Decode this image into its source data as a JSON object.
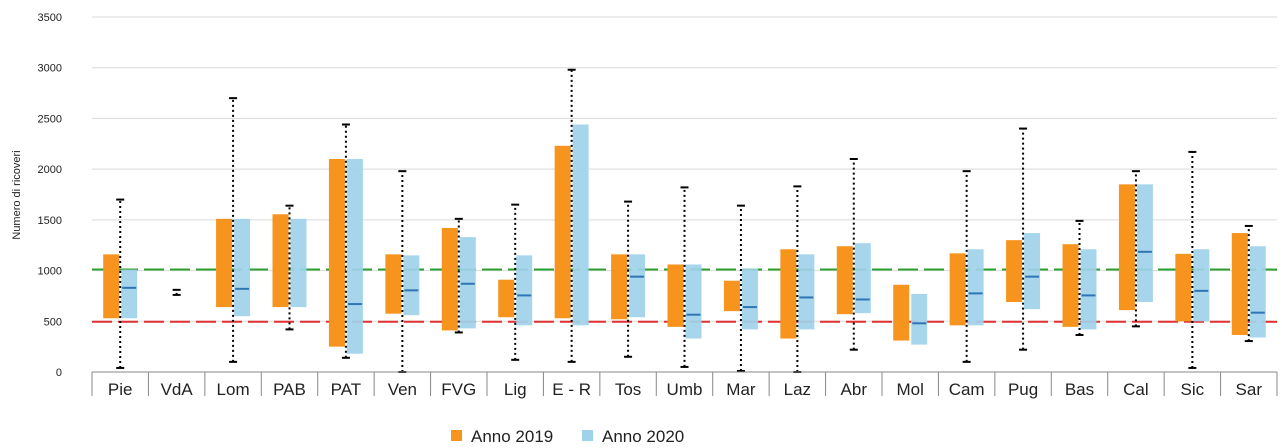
{
  "chart_data": {
    "type": "box-range",
    "ylabel": "Numero di ricoveri",
    "ylim": [
      0,
      3500
    ],
    "yticks": [
      0,
      500,
      1000,
      1500,
      2000,
      2500,
      3000,
      3500
    ],
    "colors": {
      "2019": "#f7941d",
      "2020": "#9fd3ea",
      "median": "#2e75b6",
      "upper_ref": "#2ca02c",
      "lower_ref": "#e03131",
      "whisker": "#000000"
    },
    "reference_lines": [
      {
        "value": 1010,
        "color": "#2ca02c"
      },
      {
        "value": 495,
        "color": "#e03131"
      }
    ],
    "legend": [
      {
        "key": "2019",
        "label": "Anno 2019"
      },
      {
        "key": "2020",
        "label": "Anno 2020"
      }
    ],
    "categories": [
      "Pie",
      "VdA",
      "Lom",
      "PAB",
      "PAT",
      "Ven",
      "FVG",
      "Lig",
      "E - R",
      "Tos",
      "Umb",
      "Mar",
      "Laz",
      "Abr",
      "Mol",
      "Cam",
      "Pug",
      "Bas",
      "Cal",
      "Sic",
      "Sar"
    ],
    "series": [
      {
        "key": "2019",
        "low": [
          530,
          null,
          640,
          640,
          250,
          575,
          410,
          540,
          530,
          520,
          445,
          600,
          330,
          570,
          310,
          460,
          690,
          445,
          610,
          500,
          365
        ],
        "high": [
          1160,
          null,
          1510,
          1555,
          2100,
          1160,
          1420,
          910,
          2230,
          1160,
          1060,
          900,
          1210,
          1240,
          860,
          1170,
          1300,
          1260,
          1850,
          1165,
          1370
        ]
      },
      {
        "key": "2020",
        "low": [
          530,
          null,
          550,
          640,
          180,
          560,
          430,
          460,
          460,
          540,
          330,
          420,
          420,
          580,
          270,
          460,
          620,
          420,
          690,
          500,
          340
        ],
        "high": [
          1010,
          null,
          1510,
          1510,
          2100,
          1150,
          1330,
          1150,
          2440,
          1160,
          1060,
          1020,
          1160,
          1270,
          770,
          1210,
          1370,
          1210,
          1850,
          1210,
          1240
        ],
        "median": [
          830,
          null,
          820,
          null,
          670,
          805,
          870,
          755,
          null,
          940,
          565,
          640,
          735,
          715,
          480,
          775,
          940,
          755,
          1185,
          800,
          585
        ]
      }
    ],
    "whiskers": {
      "low": [
        40,
        760,
        100,
        420,
        140,
        0,
        390,
        120,
        100,
        150,
        50,
        10,
        0,
        220,
        null,
        100,
        220,
        365,
        450,
        40,
        305
      ],
      "high": [
        1700,
        810,
        2700,
        1640,
        2440,
        1980,
        1510,
        1650,
        2980,
        1680,
        1820,
        1640,
        1830,
        2100,
        null,
        1980,
        2400,
        1490,
        1980,
        2170,
        1440
      ]
    }
  }
}
